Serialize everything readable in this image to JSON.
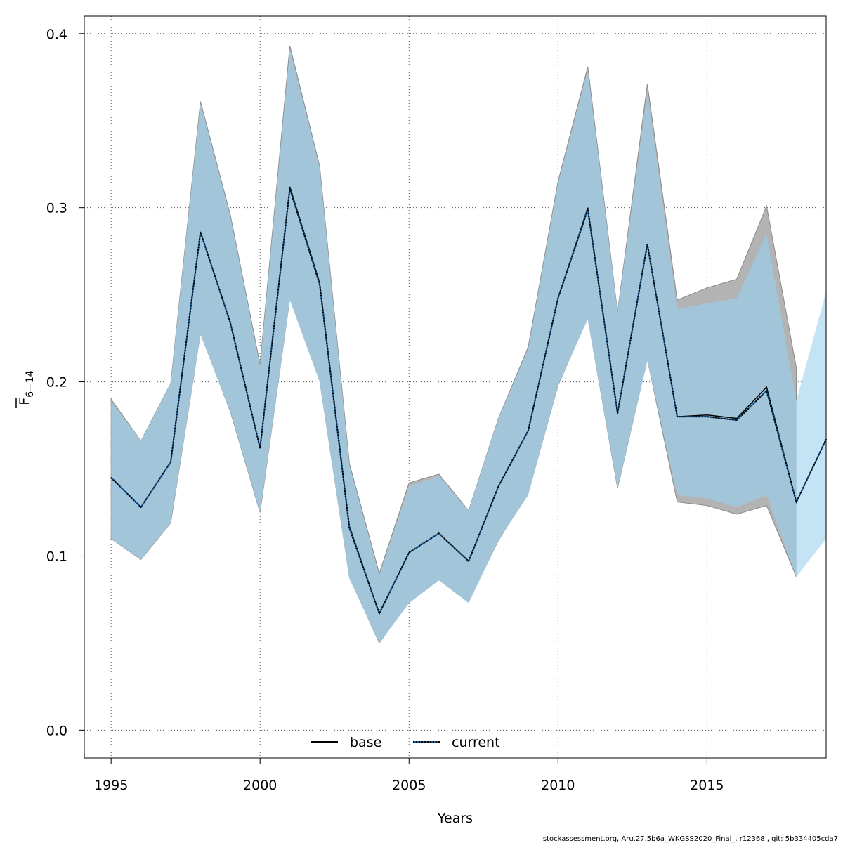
{
  "chart_data": {
    "type": "line",
    "xlabel": "Years",
    "ylabel_main": "F",
    "ylabel_sub": "6−14",
    "xlim": [
      1994.1,
      2019
    ],
    "ylim": [
      -0.016,
      0.41
    ],
    "x_ticks": [
      1995,
      2000,
      2005,
      2010,
      2015
    ],
    "y_ticks": [
      0.0,
      0.1,
      0.2,
      0.3,
      0.4
    ],
    "y_tick_labels": [
      "0.0",
      "0.1",
      "0.2",
      "0.3",
      "0.4"
    ],
    "grid": true,
    "legend_position": "bottom-center",
    "legend": [
      {
        "name": "base",
        "style": "solid",
        "color": "#000000"
      },
      {
        "name": "current",
        "style": "dotted",
        "color": "#1a5a96"
      }
    ],
    "colors": {
      "base_band": "#b3b3b3",
      "current_band": "#a3c5d9",
      "current_forecast_band": "#c4e3f5",
      "band_border": "#8a8a8a",
      "current_line": "#1a5a96"
    },
    "x": [
      1995,
      1996,
      1997,
      1998,
      1999,
      2000,
      2001,
      2002,
      2003,
      2004,
      2005,
      2006,
      2007,
      2008,
      2009,
      2010,
      2011,
      2012,
      2013,
      2014,
      2015,
      2016,
      2017,
      2018
    ],
    "series": [
      {
        "name": "base",
        "estimate": [
          0.145,
          0.128,
          0.154,
          0.286,
          0.234,
          0.162,
          0.312,
          0.257,
          0.117,
          0.067,
          0.102,
          0.113,
          0.097,
          0.14,
          0.172,
          0.248,
          0.3,
          0.182,
          0.279,
          0.18,
          0.181,
          0.179,
          0.197,
          0.131
        ],
        "upper": [
          0.19,
          0.166,
          0.199,
          0.361,
          0.296,
          0.21,
          0.393,
          0.324,
          0.153,
          0.09,
          0.142,
          0.147,
          0.126,
          0.179,
          0.22,
          0.315,
          0.381,
          0.24,
          0.371,
          0.247,
          0.254,
          0.259,
          0.301,
          0.208
        ],
        "lower": [
          0.11,
          0.098,
          0.119,
          0.228,
          0.183,
          0.125,
          0.248,
          0.201,
          0.088,
          0.05,
          0.074,
          0.087,
          0.074,
          0.109,
          0.136,
          0.198,
          0.237,
          0.139,
          0.213,
          0.131,
          0.129,
          0.124,
          0.129,
          0.088
        ]
      },
      {
        "name": "current",
        "x": [
          1995,
          1996,
          1997,
          1998,
          1999,
          2000,
          2001,
          2002,
          2003,
          2004,
          2005,
          2006,
          2007,
          2008,
          2009,
          2010,
          2011,
          2012,
          2013,
          2014,
          2015,
          2016,
          2017,
          2018,
          2019
        ],
        "estimate": [
          0.145,
          0.128,
          0.154,
          0.286,
          0.234,
          0.162,
          0.311,
          0.256,
          0.116,
          0.067,
          0.102,
          0.113,
          0.097,
          0.14,
          0.172,
          0.248,
          0.299,
          0.182,
          0.279,
          0.18,
          0.18,
          0.178,
          0.195,
          0.131,
          0.167
        ],
        "upper": [
          0.189,
          0.166,
          0.199,
          0.36,
          0.295,
          0.209,
          0.391,
          0.323,
          0.152,
          0.089,
          0.14,
          0.146,
          0.126,
          0.179,
          0.219,
          0.314,
          0.379,
          0.24,
          0.366,
          0.242,
          0.245,
          0.248,
          0.285,
          0.189,
          0.252
        ],
        "lower": [
          0.11,
          0.098,
          0.119,
          0.227,
          0.183,
          0.125,
          0.247,
          0.2,
          0.087,
          0.05,
          0.073,
          0.086,
          0.073,
          0.109,
          0.135,
          0.198,
          0.236,
          0.139,
          0.212,
          0.135,
          0.133,
          0.128,
          0.135,
          0.088,
          0.11
        ]
      }
    ]
  },
  "footer": "stockassessment.org, Aru.27.5b6a_WKGSS2020_Final_, r12368 , git: 5b334405cda7"
}
